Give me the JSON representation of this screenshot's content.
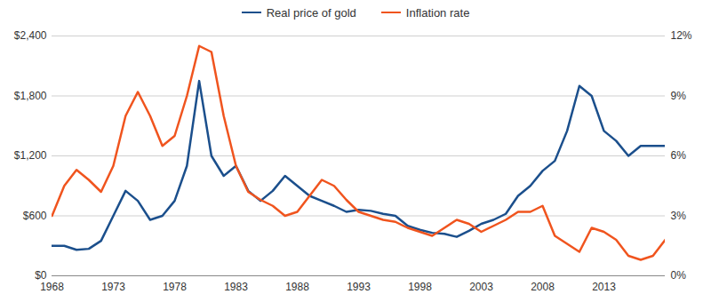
{
  "chart_data": {
    "type": "line",
    "x": [
      1968,
      1969,
      1970,
      1971,
      1972,
      1973,
      1974,
      1975,
      1976,
      1977,
      1978,
      1979,
      1980,
      1981,
      1982,
      1983,
      1984,
      1985,
      1986,
      1987,
      1988,
      1989,
      1990,
      1991,
      1992,
      1993,
      1994,
      1995,
      1996,
      1997,
      1998,
      1999,
      2000,
      2001,
      2002,
      2003,
      2004,
      2005,
      2006,
      2007,
      2008,
      2009,
      2010,
      2011,
      2012,
      2013,
      2014,
      2015,
      2016,
      2017,
      2018
    ],
    "series": [
      {
        "name": "Real price of gold",
        "color": "#1b4f8c",
        "values": [
          300,
          300,
          260,
          270,
          350,
          600,
          850,
          750,
          560,
          600,
          750,
          1100,
          1950,
          1200,
          1000,
          1100,
          850,
          750,
          850,
          1000,
          900,
          800,
          750,
          700,
          640,
          660,
          650,
          620,
          600,
          500,
          460,
          430,
          420,
          390,
          450,
          520,
          560,
          620,
          800,
          900,
          1050,
          1150,
          1450,
          1900,
          1800,
          1450,
          1350,
          1200,
          1300,
          1300,
          1300
        ]
      },
      {
        "name": "Inflation rate",
        "color": "#f0541e",
        "axis": "y2",
        "values": [
          3.0,
          4.5,
          5.3,
          4.8,
          4.2,
          5.5,
          8.0,
          9.2,
          8.0,
          6.5,
          7.0,
          9.0,
          11.5,
          11.2,
          8.0,
          5.5,
          4.2,
          3.8,
          3.5,
          3.0,
          3.2,
          4.0,
          4.8,
          4.5,
          3.8,
          3.2,
          3.0,
          2.8,
          2.7,
          2.4,
          2.2,
          2.0,
          2.4,
          2.8,
          2.6,
          2.2,
          2.5,
          2.8,
          3.2,
          3.2,
          3.5,
          2.0,
          1.6,
          1.2,
          2.4,
          2.2,
          1.8,
          1.0,
          0.8,
          1.0,
          1.8
        ]
      }
    ],
    "xlim": [
      1968,
      2018
    ],
    "xticks": [
      1968,
      1973,
      1978,
      1983,
      1988,
      1993,
      1998,
      2003,
      2008,
      2013
    ],
    "ylim": [
      0,
      2400
    ],
    "yticks": [
      {
        "value": 0,
        "label": "$0"
      },
      {
        "value": 600,
        "label": "$600"
      },
      {
        "value": 1200,
        "label": "$1,200"
      },
      {
        "value": 1800,
        "label": "$1,800"
      },
      {
        "value": 2400,
        "label": "$2,400"
      }
    ],
    "y2lim": [
      0,
      12
    ],
    "y2ticks": [
      {
        "value": 0,
        "label": "0%"
      },
      {
        "value": 3,
        "label": "3%"
      },
      {
        "value": 6,
        "label": "6%"
      },
      {
        "value": 9,
        "label": "9%"
      },
      {
        "value": 12,
        "label": "12%"
      }
    ],
    "grid": true,
    "legend": "top"
  }
}
